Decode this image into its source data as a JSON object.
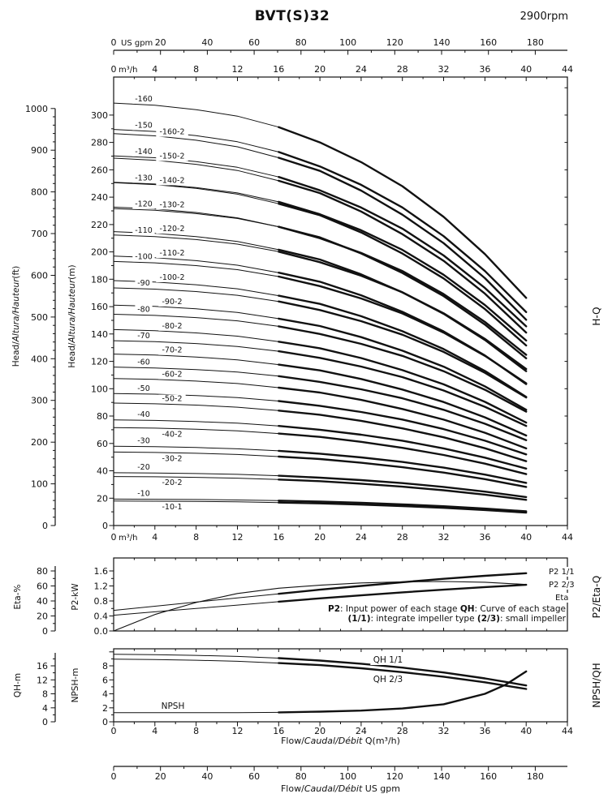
{
  "header": {
    "title": "BVT(S)32",
    "rpm": "2900rpm"
  },
  "labels": {
    "unit_m3h": "m³/h",
    "unit_gpm": "US gpm",
    "head_ft_parts": [
      {
        "t": "Head/"
      },
      {
        "t": "Altura/Hauteur",
        "i": 1
      },
      {
        "t": "(ft)"
      }
    ],
    "head_m_parts": [
      {
        "t": "Head/"
      },
      {
        "t": "Altura/Hauteur",
        "i": 1
      },
      {
        "t": "(m)"
      }
    ],
    "eta_axis": "Eta-%",
    "p2_axis": "P2-kW",
    "qh_axis": "QH-m",
    "npsh_axis": "NPSH-m",
    "right_hq": "H-Q",
    "right_p2": "P2/Eta-Q",
    "right_npsh": "NPSH/QH",
    "flow_m3h_parts": [
      {
        "t": "Flow/"
      },
      {
        "t": "Caudal/Débit",
        "i": 1
      },
      {
        "t": " Q(m³/h)"
      }
    ],
    "flow_gpm_parts": [
      {
        "t": "Flow/"
      },
      {
        "t": "Caudal/Débit",
        "i": 1
      },
      {
        "t": "  US gpm"
      }
    ],
    "note_line1_parts": [
      {
        "t": "P2",
        "b": 1
      },
      {
        "t": ": Input power of each stage "
      },
      {
        "t": "QH",
        "b": 1
      },
      {
        "t": ": Curve of each stage"
      }
    ],
    "note_line2_parts": [
      {
        "t": "(1/1)",
        "b": 1
      },
      {
        "t": ": integrate impeller type "
      },
      {
        "t": "(2/3)",
        "b": 1
      },
      {
        "t": ": small impeller"
      }
    ]
  },
  "chart_data": [
    {
      "id": "hq",
      "type": "line",
      "title": "H-Q",
      "xlabel": "Flow Q (m³/h)",
      "ylabel": "Head (m)",
      "xlim_m3h": [
        0,
        44
      ],
      "ylim_m": [
        0,
        327
      ],
      "ylim_ft": [
        0,
        1073
      ],
      "x_ticks_m3h": [
        0,
        4,
        8,
        12,
        16,
        20,
        24,
        28,
        32,
        36,
        40,
        44
      ],
      "x_ticks_gpm": [
        0,
        20,
        40,
        60,
        80,
        100,
        120,
        140,
        160,
        180
      ],
      "y_ticks_m": [
        0,
        20,
        40,
        60,
        80,
        100,
        120,
        140,
        160,
        180,
        200,
        220,
        240,
        260,
        280,
        300
      ],
      "y_ticks_ft": [
        0,
        100,
        200,
        300,
        400,
        500,
        600,
        700,
        800,
        900,
        1000
      ],
      "x_m3h": [
        0,
        4,
        8,
        12,
        16,
        20,
        24,
        28,
        32,
        36,
        40
      ],
      "per_stage_head_m_full": [
        19.3,
        19.2,
        19.0,
        18.7,
        18.2,
        17.5,
        16.6,
        15.5,
        14.1,
        12.4,
        10.4
      ],
      "per_stage_head_m_small": [
        17.9,
        17.8,
        17.6,
        17.3,
        16.8,
        16.2,
        15.3,
        14.2,
        12.9,
        11.3,
        9.4
      ],
      "series": [
        {
          "label": "-160",
          "stages": 16,
          "impeller": "1/1"
        },
        {
          "label": "-160-2",
          "stages": 16,
          "impeller": "2/3"
        },
        {
          "label": "-150",
          "stages": 15,
          "impeller": "1/1"
        },
        {
          "label": "-150-2",
          "stages": 15,
          "impeller": "2/3"
        },
        {
          "label": "-140",
          "stages": 14,
          "impeller": "1/1"
        },
        {
          "label": "-140-2",
          "stages": 14,
          "impeller": "2/3"
        },
        {
          "label": "-130",
          "stages": 13,
          "impeller": "1/1"
        },
        {
          "label": "-130-2",
          "stages": 13,
          "impeller": "2/3"
        },
        {
          "label": "-120",
          "stages": 12,
          "impeller": "1/1"
        },
        {
          "label": "-120-2",
          "stages": 12,
          "impeller": "2/3"
        },
        {
          "label": "-110",
          "stages": 11,
          "impeller": "1/1"
        },
        {
          "label": "-110-2",
          "stages": 11,
          "impeller": "2/3"
        },
        {
          "label": "-100",
          "stages": 10,
          "impeller": "1/1"
        },
        {
          "label": "-100-2",
          "stages": 10,
          "impeller": "2/3"
        },
        {
          "label": "-90",
          "stages": 9,
          "impeller": "1/1"
        },
        {
          "label": "-90-2",
          "stages": 9,
          "impeller": "2/3"
        },
        {
          "label": "-80",
          "stages": 8,
          "impeller": "1/1"
        },
        {
          "label": "-80-2",
          "stages": 8,
          "impeller": "2/3"
        },
        {
          "label": "-70",
          "stages": 7,
          "impeller": "1/1"
        },
        {
          "label": "-70-2",
          "stages": 7,
          "impeller": "2/3"
        },
        {
          "label": "-60",
          "stages": 6,
          "impeller": "1/1"
        },
        {
          "label": "-60-2",
          "stages": 6,
          "impeller": "2/3"
        },
        {
          "label": "-50",
          "stages": 5,
          "impeller": "1/1"
        },
        {
          "label": "-50-2",
          "stages": 5,
          "impeller": "2/3"
        },
        {
          "label": "-40",
          "stages": 4,
          "impeller": "1/1"
        },
        {
          "label": "-40-2",
          "stages": 4,
          "impeller": "2/3"
        },
        {
          "label": "-30",
          "stages": 3,
          "impeller": "1/1"
        },
        {
          "label": "-30-2",
          "stages": 3,
          "impeller": "2/3"
        },
        {
          "label": "-20",
          "stages": 2,
          "impeller": "1/1"
        },
        {
          "label": "-20-2",
          "stages": 2,
          "impeller": "2/3"
        },
        {
          "label": "-10",
          "stages": 1,
          "impeller": "1/1"
        },
        {
          "label": "-10-1",
          "stages": 1,
          "impeller": "2/3"
        }
      ]
    },
    {
      "id": "p2eta",
      "type": "line",
      "title": "P2/Eta-Q",
      "x_m3h": [
        0,
        4,
        8,
        12,
        16,
        20,
        24,
        28,
        32,
        36,
        40
      ],
      "ylim_eta_pct": [
        0,
        97
      ],
      "ylim_p2_kw": [
        0,
        1.95
      ],
      "y_ticks_eta": [
        0,
        20,
        40,
        60,
        80
      ],
      "y_ticks_p2": [
        "0.0",
        "0.4",
        "0.8",
        "1.2",
        "1.6"
      ],
      "series": [
        {
          "name": "P2 1/1",
          "axis": "p2_kw",
          "values": [
            0.55,
            0.66,
            0.77,
            0.88,
            0.99,
            1.1,
            1.2,
            1.3,
            1.39,
            1.47,
            1.54
          ]
        },
        {
          "name": "P2 2/3",
          "axis": "p2_kw",
          "values": [
            0.42,
            0.51,
            0.6,
            0.69,
            0.78,
            0.87,
            0.95,
            1.03,
            1.1,
            1.17,
            1.23
          ]
        },
        {
          "name": "Eta",
          "axis": "eta_pct",
          "values": [
            0,
            22,
            38,
            50,
            57,
            61,
            64,
            65.5,
            66,
            65,
            62
          ]
        }
      ]
    },
    {
      "id": "npshqh",
      "type": "line",
      "title": "NPSH/QH",
      "x_m3h": [
        0,
        4,
        8,
        12,
        16,
        20,
        24,
        28,
        32,
        36,
        38,
        40
      ],
      "x_ticks_m3h": [
        0,
        4,
        8,
        12,
        16,
        20,
        24,
        28,
        32,
        36,
        40,
        44
      ],
      "x_ticks_gpm": [
        0,
        20,
        40,
        60,
        80,
        100,
        120,
        140,
        160,
        180
      ],
      "ylim_qh_m": [
        0,
        20.9
      ],
      "ylim_npsh_m": [
        0,
        10.4
      ],
      "y_ticks_qh": [
        0,
        4,
        8,
        12,
        16
      ],
      "y_ticks_npsh": [
        0,
        2,
        4,
        6,
        8
      ],
      "series": [
        {
          "name": "QH 1/1",
          "axis": "qh_m",
          "values": [
            19.3,
            19.2,
            19.0,
            18.7,
            18.2,
            17.5,
            16.6,
            15.5,
            14.1,
            12.4,
            11.4,
            10.4
          ]
        },
        {
          "name": "QH 2/3",
          "axis": "qh_m",
          "values": [
            17.9,
            17.8,
            17.6,
            17.3,
            16.8,
            16.2,
            15.3,
            14.2,
            12.9,
            11.3,
            10.35,
            9.4
          ]
        },
        {
          "name": "NPSH",
          "axis": "npsh_m",
          "values": [
            1.3,
            1.3,
            1.3,
            1.3,
            1.35,
            1.45,
            1.6,
            1.9,
            2.5,
            4.0,
            5.3,
            7.2
          ]
        }
      ]
    }
  ]
}
